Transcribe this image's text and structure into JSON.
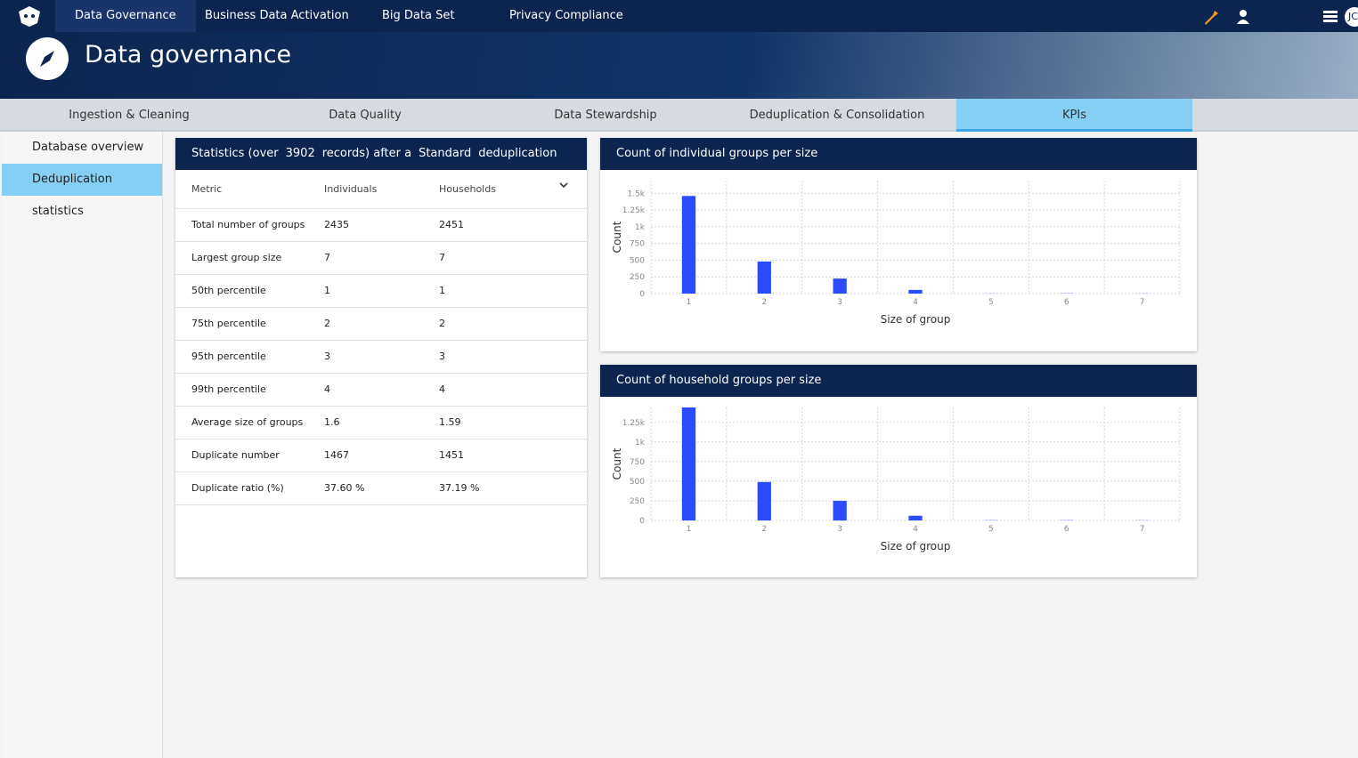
{
  "nav": {
    "items": [
      "Data Governance",
      "Business Data Activation",
      "Big Data Set",
      "Privacy Compliance"
    ],
    "user": "JC"
  },
  "header": {
    "title": "Data governance"
  },
  "tabs": [
    "Ingestion & Cleaning",
    "Data Quality",
    "Data Stewardship",
    "Deduplication & Consolidation",
    "KPIs"
  ],
  "sidebar": [
    "Database overview",
    "Deduplication statistics"
  ],
  "stats": {
    "header": [
      "Statistics (over",
      "3902",
      "records) after a",
      "Standard",
      "deduplication"
    ],
    "columns": [
      "Metric",
      "Individuals",
      "Households"
    ],
    "rows": [
      [
        "Total number of groups",
        "2435",
        "2451"
      ],
      [
        "Largest group size",
        "7",
        "7"
      ],
      [
        "50th percentile",
        "1",
        "1"
      ],
      [
        "75th percentile",
        "2",
        "2"
      ],
      [
        "95th percentile",
        "3",
        "3"
      ],
      [
        "99th percentile",
        "4",
        "4"
      ],
      [
        "Average size of groups",
        "1.6",
        "1.59"
      ],
      [
        "Duplicate number",
        "1467",
        "1451"
      ],
      [
        "Duplicate ratio (%)",
        "37.60 %",
        "37.19 %"
      ]
    ]
  },
  "chart_data": [
    {
      "type": "bar",
      "title": "Count of individual groups per size",
      "x_label": "Size of group",
      "y_label": "Count",
      "categories": [
        "1",
        "2",
        "3",
        "4",
        "5",
        "6",
        "7"
      ],
      "values": [
        1460,
        480,
        225,
        55,
        2,
        3,
        2
      ],
      "color": "#2a4bff",
      "ylim": [
        0,
        1690
      ],
      "yticks": [
        0,
        250,
        500,
        750,
        {
          "value": 1000,
          "label": "1k"
        },
        {
          "value": 1250,
          "label": "1.25k"
        },
        {
          "value": 1500,
          "label": "1.5k"
        }
      ],
      "grid": true
    },
    {
      "type": "bar",
      "title": "Count of household groups per size",
      "x_label": "Size of group",
      "y_label": "Count",
      "categories": [
        "1",
        "2",
        "3",
        "4",
        "5",
        "6",
        "7"
      ],
      "values": [
        1440,
        490,
        250,
        60,
        3,
        3,
        2
      ],
      "color": "#2a4bff",
      "ylim": [
        0,
        1440
      ],
      "yticks": [
        0,
        250,
        500,
        750,
        {
          "value": 1000,
          "label": "1k"
        },
        {
          "value": 1250,
          "label": "1.25k"
        }
      ],
      "grid": true
    }
  ]
}
